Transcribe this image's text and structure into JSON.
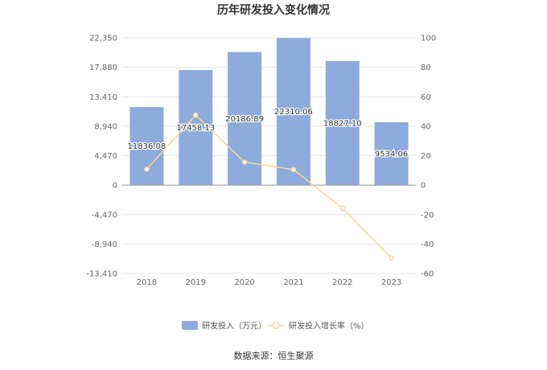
{
  "chart_data": {
    "type": "bar",
    "title": "历年研发投入变化情况",
    "categories": [
      "2018",
      "2019",
      "2020",
      "2021",
      "2022",
      "2023"
    ],
    "series": [
      {
        "name": "研发投入（万元）",
        "type": "bar",
        "axis": "left",
        "values": [
          11836.08,
          17458.13,
          20186.89,
          22310.06,
          18827.1,
          9534.06
        ],
        "labels": [
          "11836.08",
          "17458.13",
          "20186.89",
          "22310.06",
          "18827.10",
          "9534.06"
        ],
        "color": "#8dabdb"
      },
      {
        "name": "研发投入增长率（%）",
        "type": "line",
        "axis": "right",
        "values": [
          10.8,
          47.5,
          15.6,
          10.5,
          -15.6,
          -49.4
        ],
        "color": "#fbd69a"
      }
    ],
    "y_left": {
      "ticks": [
        "22,350",
        "17,880",
        "13,410",
        "8,940",
        "4,470",
        "0",
        "-4,470",
        "-8,940",
        "-13,410"
      ],
      "range": [
        -13410,
        22350
      ]
    },
    "y_right": {
      "ticks": [
        "100",
        "80",
        "60",
        "40",
        "20",
        "0",
        "-20",
        "-40",
        "-60"
      ],
      "range": [
        -60,
        100
      ]
    },
    "grid": true,
    "legend_position": "bottom"
  },
  "source": "数据来源：恒生聚源"
}
